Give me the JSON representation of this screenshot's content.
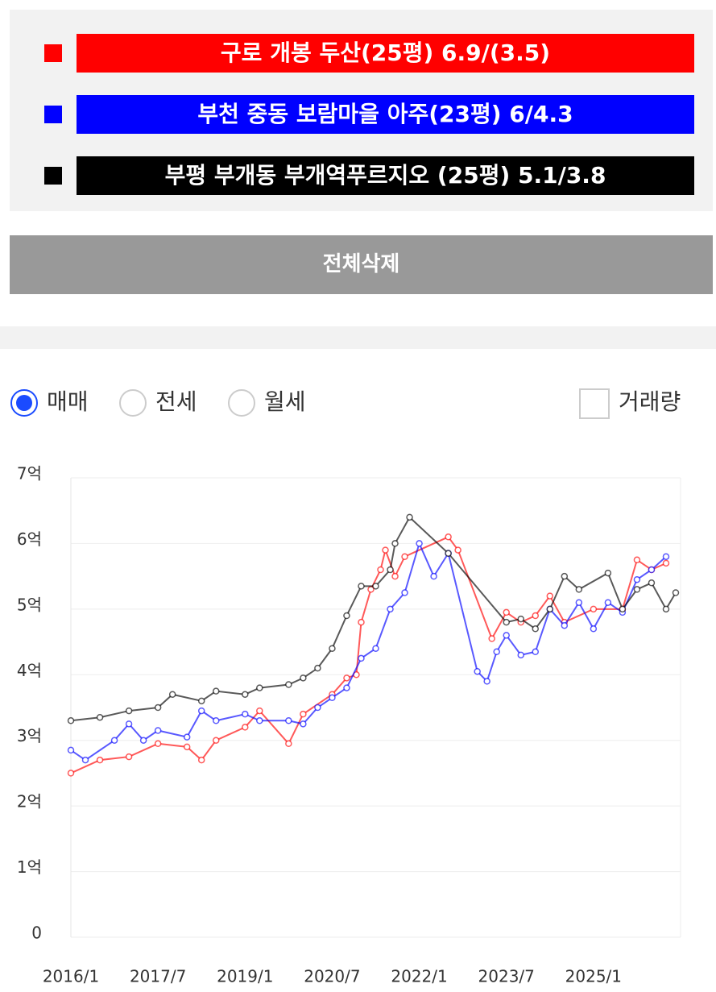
{
  "controls": {
    "clear_button": "전체삭제",
    "radios": [
      {
        "label": "매매",
        "selected": true
      },
      {
        "label": "전세",
        "selected": false
      },
      {
        "label": "월세",
        "selected": false
      }
    ],
    "checkbox": {
      "label": "거래량",
      "checked": false
    }
  },
  "chart_data": {
    "type": "line",
    "xlim": [
      "2016/1",
      "2026/7"
    ],
    "xticks": [
      "2016/1",
      "2017/7",
      "2019/1",
      "2020/7",
      "2022/1",
      "2023/7",
      "2025/1"
    ],
    "ylim": [
      0,
      7
    ],
    "yticks": [
      0,
      {
        "value": 1,
        "label": "1억"
      },
      {
        "value": 2,
        "label": "2억"
      },
      {
        "value": 3,
        "label": "3억"
      },
      {
        "value": 4,
        "label": "4억"
      },
      {
        "value": 5,
        "label": "5억"
      },
      {
        "value": 6,
        "label": "6억"
      },
      {
        "value": 7,
        "label": "7억"
      }
    ],
    "grid": true,
    "series": [
      {
        "name": "구로 개봉 두산(25평) 6.9/(3.5)",
        "color": "#ff0000",
        "x": [
          "2016/1",
          "2016/7",
          "2017/1",
          "2017/7",
          "2018/1",
          "2018/4",
          "2018/7",
          "2019/1",
          "2019/4",
          "2019/10",
          "2020/1",
          "2020/7",
          "2020/10",
          "2020/12",
          "2021/1",
          "2021/3",
          "2021/5",
          "2021/6",
          "2021/8",
          "2021/10",
          "2022/7",
          "2022/9",
          "2023/4",
          "2023/7",
          "2023/10",
          "2024/1",
          "2024/4",
          "2024/7",
          "2025/1",
          "2025/7",
          "2025/10",
          "2026/1",
          "2026/4"
        ],
        "values": [
          2.5,
          2.7,
          2.75,
          2.95,
          2.9,
          2.7,
          3.0,
          3.2,
          3.45,
          2.95,
          3.4,
          3.7,
          3.95,
          4.0,
          4.8,
          5.3,
          5.6,
          5.9,
          5.5,
          5.8,
          6.1,
          5.9,
          4.55,
          4.95,
          4.8,
          4.9,
          5.2,
          4.8,
          5.0,
          5.0,
          5.75,
          5.6,
          5.7
        ]
      },
      {
        "name": "부천 중동 보람마을 아주(23평) 6/4.3",
        "color": "#0000ff",
        "x": [
          "2016/1",
          "2016/4",
          "2016/10",
          "2017/1",
          "2017/4",
          "2017/7",
          "2018/1",
          "2018/4",
          "2018/7",
          "2019/1",
          "2019/4",
          "2019/10",
          "2020/1",
          "2020/4",
          "2020/7",
          "2020/10",
          "2021/1",
          "2021/4",
          "2021/7",
          "2021/10",
          "2022/1",
          "2022/4",
          "2022/7",
          "2023/1",
          "2023/3",
          "2023/5",
          "2023/7",
          "2023/10",
          "2024/1",
          "2024/4",
          "2024/7",
          "2024/10",
          "2025/1",
          "2025/4",
          "2025/7",
          "2025/10",
          "2026/1",
          "2026/4"
        ],
        "values": [
          2.85,
          2.7,
          3.0,
          3.25,
          3.0,
          3.15,
          3.05,
          3.45,
          3.3,
          3.4,
          3.3,
          3.3,
          3.25,
          3.5,
          3.65,
          3.8,
          4.25,
          4.4,
          5.0,
          5.25,
          6.0,
          5.5,
          5.85,
          4.05,
          3.9,
          4.35,
          4.6,
          4.3,
          4.35,
          5.0,
          4.75,
          5.1,
          4.7,
          5.1,
          4.95,
          5.45,
          5.6,
          5.8
        ]
      },
      {
        "name": "부평 부개동 부개역푸르지오 (25평) 5.1/3.8",
        "color": "#000000",
        "x": [
          "2016/1",
          "2016/7",
          "2017/1",
          "2017/7",
          "2017/10",
          "2018/4",
          "2018/7",
          "2019/1",
          "2019/4",
          "2019/10",
          "2020/1",
          "2020/4",
          "2020/7",
          "2020/10",
          "2021/1",
          "2021/4",
          "2021/7",
          "2021/8",
          "2021/11",
          "2022/7",
          "2023/7",
          "2023/10",
          "2024/1",
          "2024/4",
          "2024/7",
          "2024/10",
          "2025/4",
          "2025/7",
          "2025/10",
          "2026/1",
          "2026/4",
          "2026/6"
        ],
        "values": [
          3.3,
          3.35,
          3.45,
          3.5,
          3.7,
          3.6,
          3.75,
          3.7,
          3.8,
          3.85,
          3.95,
          4.1,
          4.4,
          4.9,
          5.35,
          5.35,
          5.6,
          6.0,
          6.4,
          5.85,
          4.8,
          4.85,
          4.7,
          5.0,
          5.5,
          5.3,
          5.55,
          5.0,
          5.3,
          5.4,
          5.0,
          5.25
        ]
      }
    ]
  }
}
